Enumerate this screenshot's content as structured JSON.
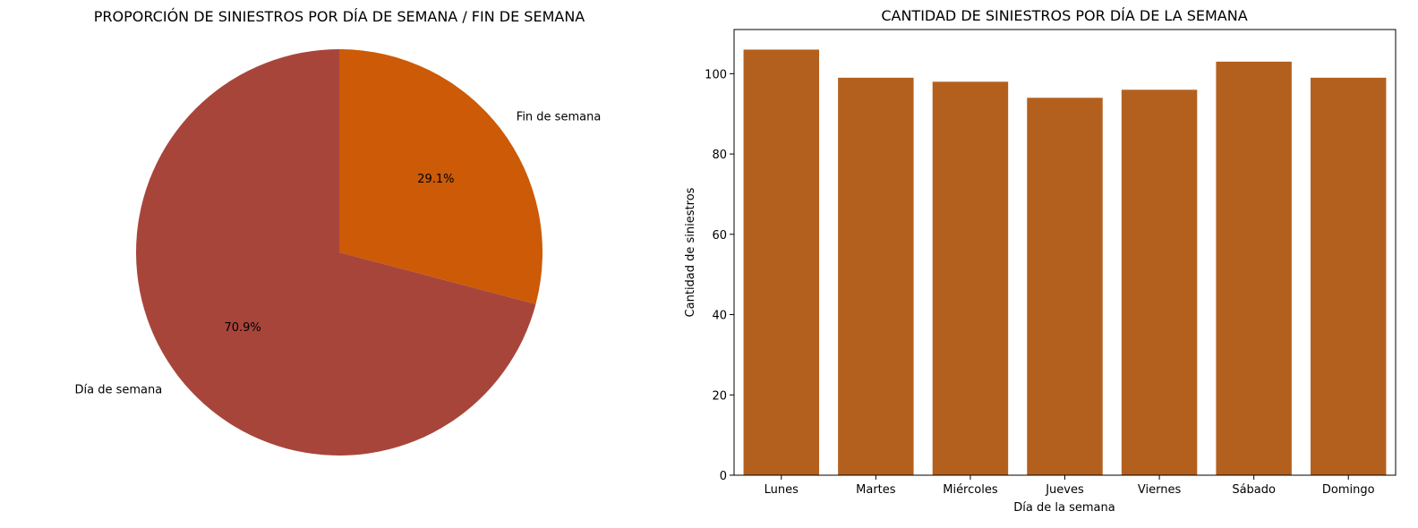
{
  "chart_data": [
    {
      "type": "pie",
      "title": "PROPORCIÓN DE SINIESTROS POR DÍA DE SEMANA / FIN DE SEMANA",
      "labels": [
        "Fin de semana",
        "Día de semana"
      ],
      "values": [
        29.1,
        70.9
      ],
      "pct_labels": [
        "29.1%",
        "70.9%"
      ],
      "colors": [
        "#cc5a07",
        "#a8453b"
      ],
      "start_angle": "top (12 o'clock), clockwise"
    },
    {
      "type": "bar",
      "title": "CANTIDAD DE SINIESTROS POR DÍA DE LA SEMANA",
      "xlabel": "Día de la semana",
      "ylabel": "Cantidad de siniestros",
      "categories": [
        "Lunes",
        "Martes",
        "Miércoles",
        "Jueves",
        "Viernes",
        "Sábado",
        "Domingo"
      ],
      "values": [
        106,
        99,
        98,
        94,
        96,
        103,
        99
      ],
      "ylim": [
        0,
        111
      ],
      "yticks": [
        0,
        20,
        40,
        60,
        80,
        100
      ],
      "bar_color": "#b3601f",
      "grid": false
    }
  ]
}
